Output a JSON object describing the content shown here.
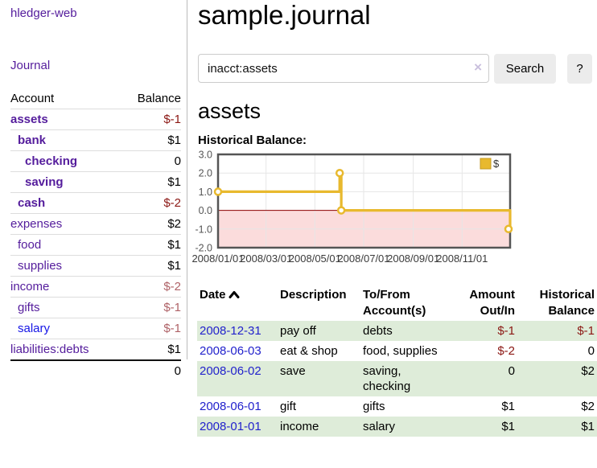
{
  "app": {
    "title": "hledger-web"
  },
  "sidebar": {
    "journal_link": "Journal",
    "accounts_header": {
      "account": "Account",
      "balance": "Balance"
    },
    "accounts": [
      {
        "name": "assets",
        "indent": 1,
        "bold": true,
        "balance": "$-1",
        "neg": "strong",
        "link": "purple"
      },
      {
        "name": "bank",
        "indent": 2,
        "bold": true,
        "balance": "$1",
        "neg": "none",
        "link": "purple"
      },
      {
        "name": "checking",
        "indent": 3,
        "bold": true,
        "balance": "0",
        "neg": "none",
        "link": "purple"
      },
      {
        "name": "saving",
        "indent": 3,
        "bold": true,
        "balance": "$1",
        "neg": "none",
        "link": "purple"
      },
      {
        "name": "cash",
        "indent": 2,
        "bold": true,
        "balance": "$-2",
        "neg": "strong",
        "link": "purple"
      },
      {
        "name": "expenses",
        "indent": 1,
        "bold": false,
        "balance": "$2",
        "neg": "none",
        "link": "purple"
      },
      {
        "name": "food",
        "indent": 2,
        "bold": false,
        "balance": "$1",
        "neg": "none",
        "link": "purple"
      },
      {
        "name": "supplies",
        "indent": 2,
        "bold": false,
        "balance": "$1",
        "neg": "none",
        "link": "purple"
      },
      {
        "name": "income",
        "indent": 1,
        "bold": false,
        "balance": "$-2",
        "neg": "soft",
        "link": "purple"
      },
      {
        "name": "gifts",
        "indent": 2,
        "bold": false,
        "balance": "$-1",
        "neg": "soft",
        "link": "purple"
      },
      {
        "name": "salary",
        "indent": 2,
        "bold": false,
        "balance": "$-1",
        "neg": "soft",
        "link": "blue"
      },
      {
        "name": "liabilities:debts",
        "indent": 1,
        "bold": false,
        "balance": "$1",
        "neg": "none",
        "link": "purple"
      }
    ],
    "total": "0"
  },
  "header": {
    "title": "sample.journal"
  },
  "search": {
    "value": "inacct:assets",
    "placeholder": "",
    "clear_icon": "×",
    "button_label": "Search",
    "help_label": "?"
  },
  "account_page": {
    "title": "assets",
    "chart_label": "Historical Balance:"
  },
  "chart_data": {
    "type": "line",
    "step": true,
    "series": [
      {
        "name": "$",
        "x": [
          "2008-01-01",
          "2008-06-01",
          "2008-06-03",
          "2008-12-31"
        ],
        "values": [
          1,
          2,
          0,
          -1
        ]
      }
    ],
    "ylim": [
      -2,
      3
    ],
    "yticks": [
      3.0,
      2.0,
      1.0,
      0.0,
      -1.0,
      -2.0
    ],
    "xticks": [
      "2008/01/01",
      "2008/03/01",
      "2008/05/01",
      "2008/07/01",
      "2008/09/01",
      "2008/11/01"
    ],
    "legend_position": "top-right",
    "line_color": "#e8b92e",
    "marker_fill": "#ffffff",
    "negative_region_fill": "#fbdcdc",
    "zero_line_color": "#8b0000",
    "grid_color": "#e6e6e6",
    "border_color": "#555555"
  },
  "register": {
    "columns": {
      "date": "Date",
      "description": "Description",
      "accounts": "To/From Account(s)",
      "amount": "Amount Out/In",
      "balance": "Historical Balance"
    },
    "rows": [
      {
        "date": "2008-12-31",
        "description": "pay off",
        "accounts": "debts",
        "amount": "$-1",
        "balance": "$-1"
      },
      {
        "date": "2008-06-03",
        "description": "eat & shop",
        "accounts": "food, supplies",
        "amount": "$-2",
        "balance": "0"
      },
      {
        "date": "2008-06-02",
        "description": "save",
        "accounts": "saving, checking",
        "amount": "0",
        "balance": "$2"
      },
      {
        "date": "2008-06-01",
        "description": "gift",
        "accounts": "gifts",
        "amount": "$1",
        "balance": "$2"
      },
      {
        "date": "2008-01-01",
        "description": "income",
        "accounts": "salary",
        "amount": "$1",
        "balance": "$1"
      }
    ]
  },
  "colors": {
    "link_purple": "#541c9c",
    "link_blue": "#1515e6",
    "date_link_blue": "#2222cc",
    "negative_strong": "#8b1713",
    "negative_soft": "#af6267",
    "row_stripe_green": "#deecd9",
    "button_gray": "#ececec",
    "chart_gold": "#e8b92e",
    "chart_pink": "#fbdcdc"
  }
}
